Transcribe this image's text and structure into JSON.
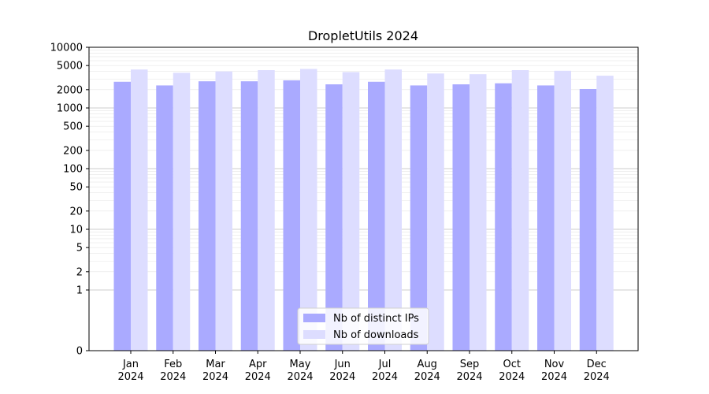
{
  "chart_data": {
    "type": "bar",
    "title": "DropletUtils 2024",
    "xlabel": "",
    "ylabel": "",
    "yscale": "symlog",
    "ylim": [
      0,
      10000
    ],
    "yticks": [
      0,
      1,
      2,
      5,
      10,
      20,
      50,
      100,
      200,
      500,
      1000,
      2000,
      5000,
      10000
    ],
    "ytick_labels": [
      "0",
      "1",
      "2",
      "5",
      "10",
      "20",
      "50",
      "100",
      "200",
      "500",
      "1000",
      "2000",
      "5000",
      "10000"
    ],
    "grid": true,
    "legend_position": "bottom-center",
    "categories": [
      [
        "Jan",
        "2024"
      ],
      [
        "Feb",
        "2024"
      ],
      [
        "Mar",
        "2024"
      ],
      [
        "Apr",
        "2024"
      ],
      [
        "May",
        "2024"
      ],
      [
        "Jun",
        "2024"
      ],
      [
        "Jul",
        "2024"
      ],
      [
        "Aug",
        "2024"
      ],
      [
        "Sep",
        "2024"
      ],
      [
        "Oct",
        "2024"
      ],
      [
        "Nov",
        "2024"
      ],
      [
        "Dec",
        "2024"
      ]
    ],
    "series": [
      {
        "name": "Nb of distinct IPs",
        "color": "#aaaaff",
        "values": [
          2700,
          2350,
          2750,
          2750,
          2850,
          2450,
          2700,
          2350,
          2450,
          2550,
          2350,
          2050
        ]
      },
      {
        "name": "Nb of downloads",
        "color": "#ddddff",
        "values": [
          4300,
          3800,
          4000,
          4200,
          4400,
          3900,
          4300,
          3700,
          3600,
          4200,
          4100,
          3400
        ]
      }
    ]
  }
}
